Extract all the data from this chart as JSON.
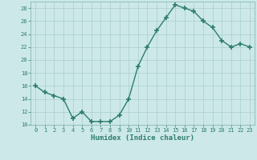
{
  "x": [
    0,
    1,
    2,
    3,
    4,
    5,
    6,
    7,
    8,
    9,
    10,
    11,
    12,
    13,
    14,
    15,
    16,
    17,
    18,
    19,
    20,
    21,
    22,
    23
  ],
  "y": [
    16,
    15,
    14.5,
    14,
    11,
    12,
    10.5,
    10.5,
    10.5,
    11.5,
    14,
    19,
    22,
    24.5,
    26.5,
    28.5,
    28,
    27.5,
    26,
    25,
    23,
    22,
    22.5,
    22
  ],
  "xlabel": "Humidex (Indice chaleur)",
  "ylim": [
    10,
    29
  ],
  "xlim": [
    -0.5,
    23.5
  ],
  "yticks": [
    10,
    12,
    14,
    16,
    18,
    20,
    22,
    24,
    26,
    28
  ],
  "xticks": [
    0,
    1,
    2,
    3,
    4,
    5,
    6,
    7,
    8,
    9,
    10,
    11,
    12,
    13,
    14,
    15,
    16,
    17,
    18,
    19,
    20,
    21,
    22,
    23
  ],
  "line_color": "#2e7d6e",
  "marker": "+",
  "marker_size": 4,
  "bg_color": "#cce8e8",
  "grid_color": "#aacece",
  "xlabel_color": "#2e7d6e",
  "tick_color": "#2e7d6e",
  "line_width": 1.0,
  "spine_color": "#7aaeae"
}
